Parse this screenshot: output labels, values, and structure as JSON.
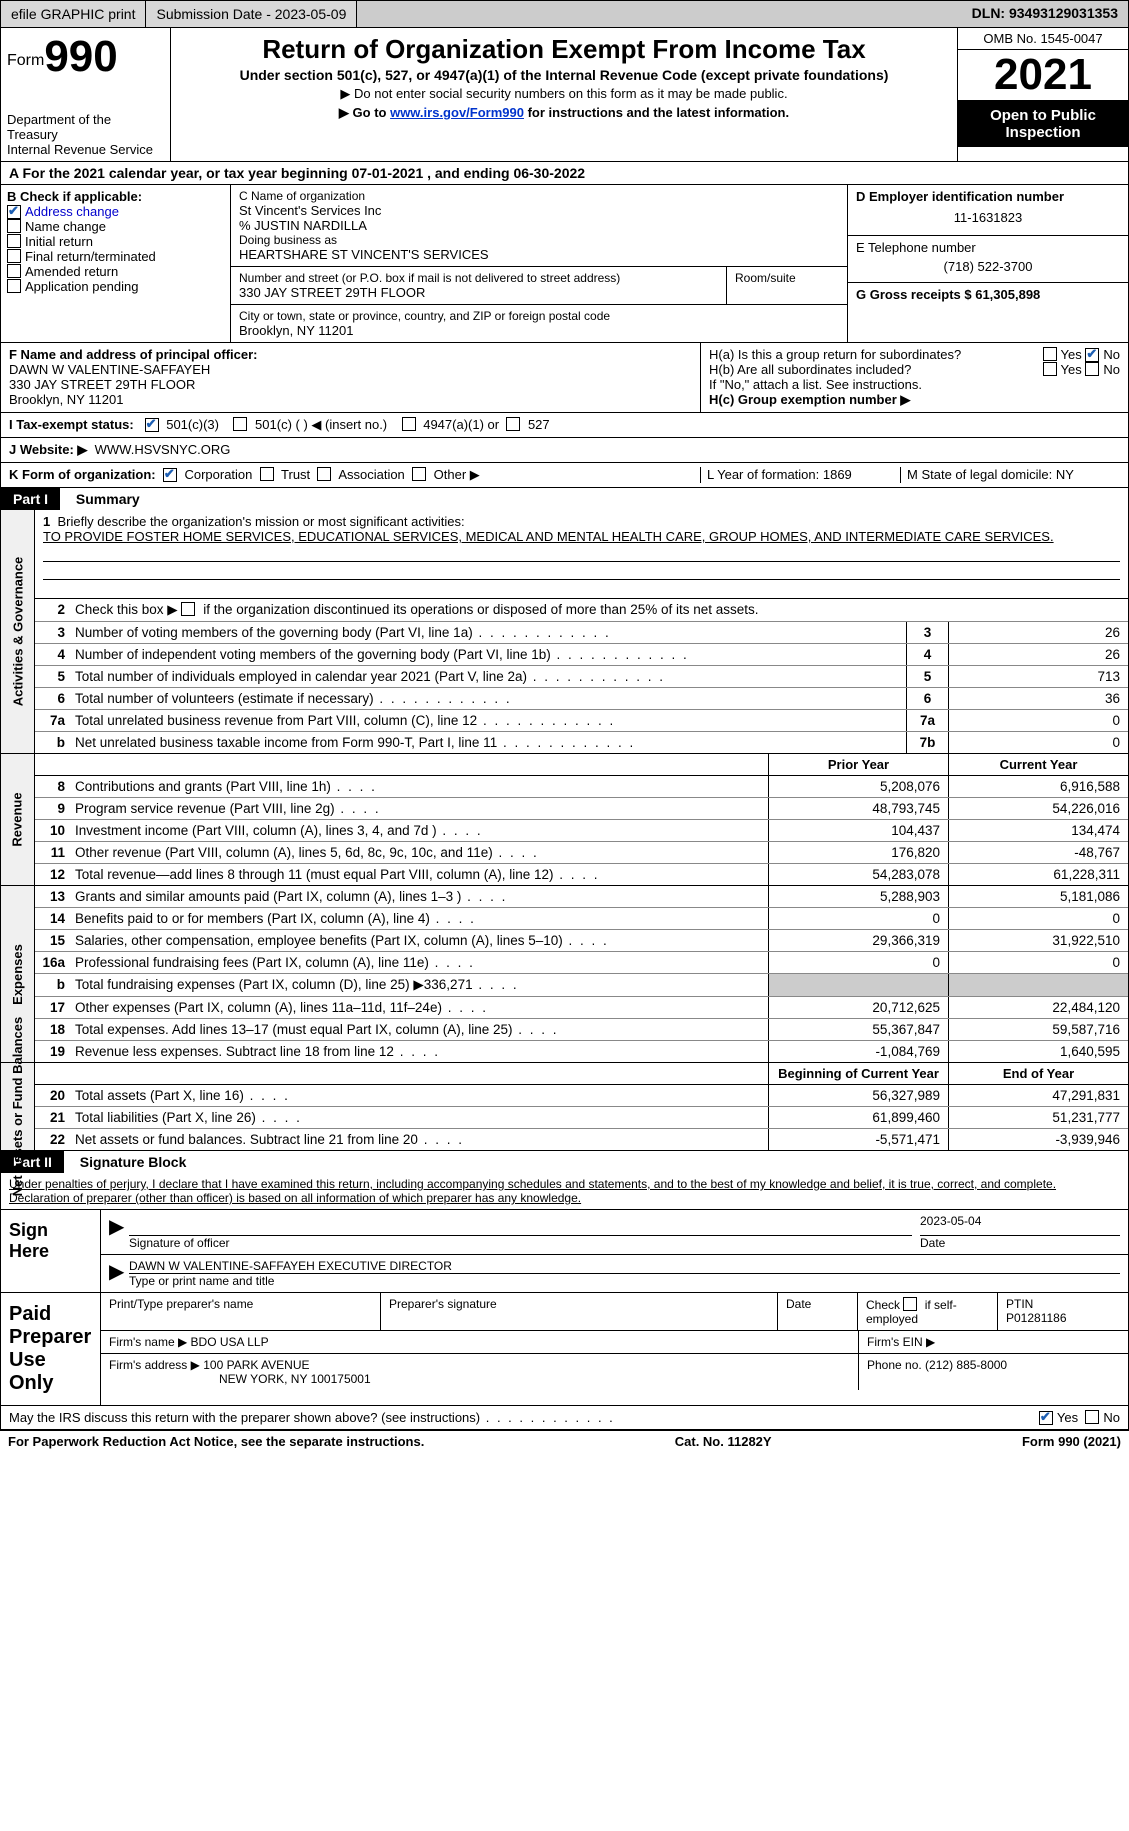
{
  "topbar": {
    "efile_label": "efile GRAPHIC print",
    "submission_label": "Submission Date - 2023-05-09",
    "dln_label": "DLN: 93493129031353"
  },
  "header": {
    "form_prefix": "Form",
    "form_number": "990",
    "dept": "Department of the Treasury",
    "irs": "Internal Revenue Service",
    "title": "Return of Organization Exempt From Income Tax",
    "subtitle": "Under section 501(c), 527, or 4947(a)(1) of the Internal Revenue Code (except private foundations)",
    "note1": "▶ Do not enter social security numbers on this form as it may be made public.",
    "note2_pre": "▶ Go to ",
    "note2_link": "www.irs.gov/Form990",
    "note2_post": " for instructions and the latest information.",
    "omb": "OMB No. 1545-0047",
    "year": "2021",
    "inspect": "Open to Public Inspection"
  },
  "row_a": "A For the 2021 calendar year, or tax year beginning 07-01-2021   , and ending 06-30-2022",
  "section_b": {
    "heading": "B Check if applicable:",
    "addr_change": "Address change",
    "name_change": "Name change",
    "initial": "Initial return",
    "final": "Final return/terminated",
    "amended": "Amended return",
    "app_pending": "Application pending"
  },
  "section_c": {
    "label_name": "C Name of organization",
    "org_name": "St Vincent's Services Inc",
    "care_of": "% JUSTIN NARDILLA",
    "dba_label": "Doing business as",
    "dba": "HEARTSHARE ST VINCENT'S SERVICES",
    "street_label": "Number and street (or P.O. box if mail is not delivered to street address)",
    "room_label": "Room/suite",
    "street": "330 JAY STREET 29TH FLOOR",
    "city_label": "City or town, state or province, country, and ZIP or foreign postal code",
    "city": "Brooklyn, NY  11201"
  },
  "section_d": {
    "ein_label": "D Employer identification number",
    "ein": "11-1631823",
    "phone_label": "E Telephone number",
    "phone": "(718) 522-3700",
    "gross_label": "G Gross receipts $ 61,305,898"
  },
  "section_f": {
    "label": "F Name and address of principal officer:",
    "name": "DAWN W VALENTINE-SAFFAYEH",
    "street": "330 JAY STREET 29TH FLOOR",
    "city": "Brooklyn, NY  11201"
  },
  "section_h": {
    "ha": "H(a)  Is this a group return for subordinates?",
    "hb": "H(b)  Are all subordinates included?",
    "hb_note": "If \"No,\" attach a list. See instructions.",
    "hc": "H(c)  Group exemption number ▶",
    "yes": "Yes",
    "no": "No"
  },
  "row_i": {
    "label": "I   Tax-exempt status:",
    "opt1": "501(c)(3)",
    "opt2": "501(c) (  ) ◀ (insert no.)",
    "opt3": "4947(a)(1) or",
    "opt4": "527"
  },
  "row_j": {
    "label": "J   Website: ▶",
    "val": "WWW.HSVSNYC.ORG"
  },
  "row_k": {
    "label": "K Form of organization:",
    "corp": "Corporation",
    "trust": "Trust",
    "assoc": "Association",
    "other": "Other ▶",
    "l_label": "L Year of formation: 1869",
    "m_label": "M State of legal domicile: NY"
  },
  "part1": {
    "header": "Part I",
    "title": "Summary",
    "q1": "Briefly describe the organization's mission or most significant activities:",
    "mission": "TO PROVIDE FOSTER HOME SERVICES, EDUCATIONAL SERVICES, MEDICAL AND MENTAL HEALTH CARE, GROUP HOMES, AND INTERMEDIATE CARE SERVICES.",
    "q2": "Check this box ▶",
    "q2b": "if the organization discontinued its operations or disposed of more than 25% of its net assets.",
    "side_gov": "Activities & Governance",
    "side_rev": "Revenue",
    "side_exp": "Expenses",
    "side_net": "Net Assets or Fund Balances",
    "prior_year": "Prior Year",
    "current_year": "Current Year",
    "begin_year": "Beginning of Current Year",
    "end_year": "End of Year",
    "lines_gov": [
      {
        "n": "3",
        "t": "Number of voting members of the governing body (Part VI, line 1a)",
        "box": "3",
        "v": "26"
      },
      {
        "n": "4",
        "t": "Number of independent voting members of the governing body (Part VI, line 1b)",
        "box": "4",
        "v": "26"
      },
      {
        "n": "5",
        "t": "Total number of individuals employed in calendar year 2021 (Part V, line 2a)",
        "box": "5",
        "v": "713"
      },
      {
        "n": "6",
        "t": "Total number of volunteers (estimate if necessary)",
        "box": "6",
        "v": "36"
      },
      {
        "n": "7a",
        "t": "Total unrelated business revenue from Part VIII, column (C), line 12",
        "box": "7a",
        "v": "0"
      },
      {
        "n": "b",
        "t": "Net unrelated business taxable income from Form 990-T, Part I, line 11",
        "box": "7b",
        "v": "0"
      }
    ],
    "lines_rev": [
      {
        "n": "8",
        "t": "Contributions and grants (Part VIII, line 1h)",
        "p": "5,208,076",
        "c": "6,916,588"
      },
      {
        "n": "9",
        "t": "Program service revenue (Part VIII, line 2g)",
        "p": "48,793,745",
        "c": "54,226,016"
      },
      {
        "n": "10",
        "t": "Investment income (Part VIII, column (A), lines 3, 4, and 7d )",
        "p": "104,437",
        "c": "134,474"
      },
      {
        "n": "11",
        "t": "Other revenue (Part VIII, column (A), lines 5, 6d, 8c, 9c, 10c, and 11e)",
        "p": "176,820",
        "c": "-48,767"
      },
      {
        "n": "12",
        "t": "Total revenue—add lines 8 through 11 (must equal Part VIII, column (A), line 12)",
        "p": "54,283,078",
        "c": "61,228,311"
      }
    ],
    "lines_exp": [
      {
        "n": "13",
        "t": "Grants and similar amounts paid (Part IX, column (A), lines 1–3 )",
        "p": "5,288,903",
        "c": "5,181,086"
      },
      {
        "n": "14",
        "t": "Benefits paid to or for members (Part IX, column (A), line 4)",
        "p": "0",
        "c": "0"
      },
      {
        "n": "15",
        "t": "Salaries, other compensation, employee benefits (Part IX, column (A), lines 5–10)",
        "p": "29,366,319",
        "c": "31,922,510"
      },
      {
        "n": "16a",
        "t": "Professional fundraising fees (Part IX, column (A), line 11e)",
        "p": "0",
        "c": "0"
      },
      {
        "n": "b",
        "t": "Total fundraising expenses (Part IX, column (D), line 25) ▶336,271",
        "p": "",
        "c": "",
        "shade": true
      },
      {
        "n": "17",
        "t": "Other expenses (Part IX, column (A), lines 11a–11d, 11f–24e)",
        "p": "20,712,625",
        "c": "22,484,120"
      },
      {
        "n": "18",
        "t": "Total expenses. Add lines 13–17 (must equal Part IX, column (A), line 25)",
        "p": "55,367,847",
        "c": "59,587,716"
      },
      {
        "n": "19",
        "t": "Revenue less expenses. Subtract line 18 from line 12",
        "p": "-1,084,769",
        "c": "1,640,595"
      }
    ],
    "lines_net": [
      {
        "n": "20",
        "t": "Total assets (Part X, line 16)",
        "p": "56,327,989",
        "c": "47,291,831"
      },
      {
        "n": "21",
        "t": "Total liabilities (Part X, line 26)",
        "p": "61,899,460",
        "c": "51,231,777"
      },
      {
        "n": "22",
        "t": "Net assets or fund balances. Subtract line 21 from line 20",
        "p": "-5,571,471",
        "c": "-3,939,946"
      }
    ]
  },
  "part2": {
    "header": "Part II",
    "title": "Signature Block",
    "decl": "Under penalties of perjury, I declare that I have examined this return, including accompanying schedules and statements, and to the best of my knowledge and belief, it is true, correct, and complete. Declaration of preparer (other than officer) is based on all information of which preparer has any knowledge.",
    "sign_here": "Sign Here",
    "sig_officer": "Signature of officer",
    "sig_date": "2023-05-04",
    "date_label": "Date",
    "officer_name": "DAWN W VALENTINE-SAFFAYEH  EXECUTIVE DIRECTOR",
    "type_name": "Type or print name and title",
    "paid_prep": "Paid Preparer Use Only",
    "prep_name_label": "Print/Type preparer's name",
    "prep_sig_label": "Preparer's signature",
    "check_self": "Check",
    "self_emp": "if self-employed",
    "ptin_label": "PTIN",
    "ptin": "P01281186",
    "firm_name_label": "Firm's name    ▶",
    "firm_name": "BDO USA LLP",
    "firm_ein_label": "Firm's EIN ▶",
    "firm_addr_label": "Firm's address ▶",
    "firm_addr1": "100 PARK AVENUE",
    "firm_addr2": "NEW YORK, NY  100175001",
    "firm_phone_label": "Phone no. (212) 885-8000",
    "discuss": "May the IRS discuss this return with the preparer shown above? (see instructions)",
    "yes": "Yes",
    "no": "No"
  },
  "footer": {
    "left": "For Paperwork Reduction Act Notice, see the separate instructions.",
    "mid": "Cat. No. 11282Y",
    "right": "Form 990 (2021)"
  }
}
